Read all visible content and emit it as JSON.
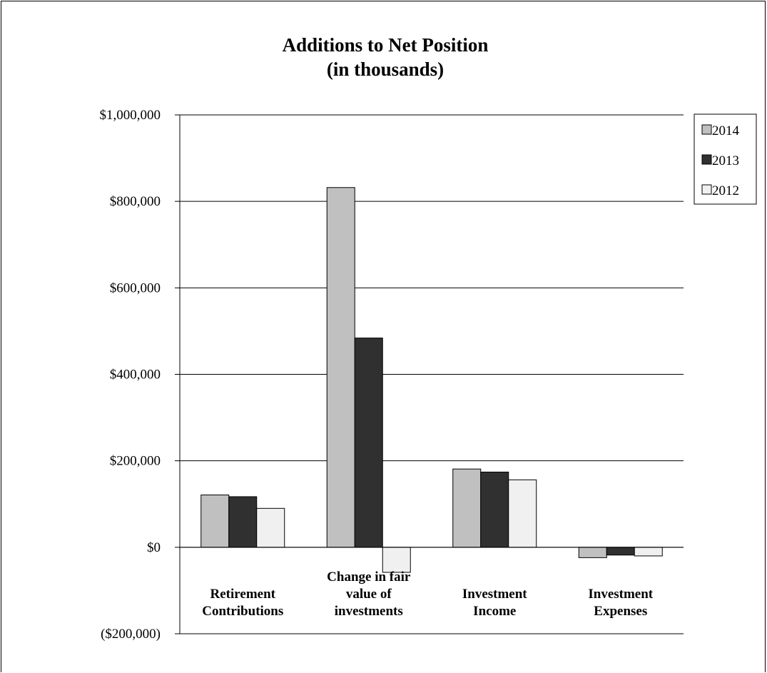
{
  "chart_data": {
    "type": "bar",
    "title": [
      "Additions  to Net Position",
      "(in thousands)"
    ],
    "categories": [
      [
        "Retirement",
        "Contributions"
      ],
      [
        "Change in fair",
        "value of",
        "investments"
      ],
      [
        "Investment",
        "Income"
      ],
      [
        "Investment",
        "Expenses"
      ]
    ],
    "series": [
      {
        "name": "2014",
        "values": [
          121000,
          832000,
          181000,
          -24000
        ]
      },
      {
        "name": "2013",
        "values": [
          117000,
          484000,
          174000,
          -18000
        ]
      },
      {
        "name": "2012",
        "values": [
          90000,
          -58000,
          156000,
          -20000
        ]
      }
    ],
    "ylim": [
      -200000,
      1000000
    ],
    "yticks": [
      1000000,
      800000,
      600000,
      400000,
      200000,
      0,
      -200000
    ],
    "ytick_labels": [
      "$1,000,000",
      "$800,000",
      "$600,000",
      "$400,000",
      "$200,000",
      "$0",
      "($200,000)"
    ],
    "grid": true,
    "legend_position": "top-right",
    "colors": {
      "2014": "#c0c0c0",
      "2013": "#303030",
      "2012": "#f0f0f0"
    }
  }
}
